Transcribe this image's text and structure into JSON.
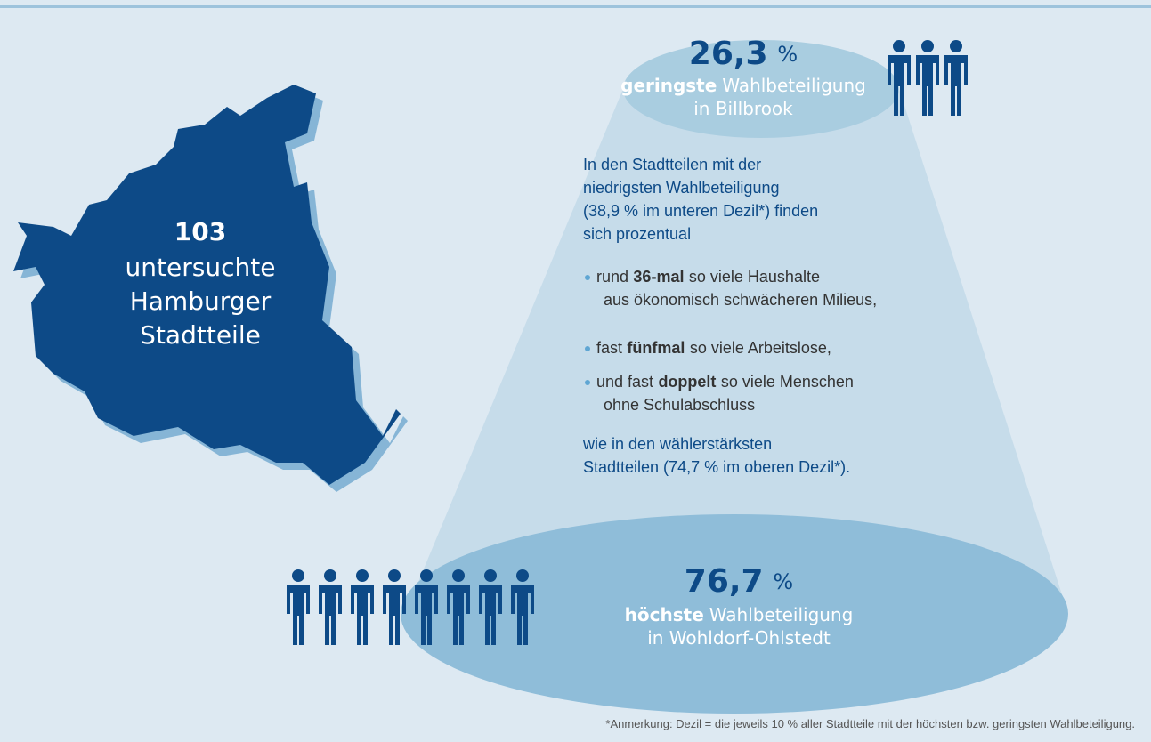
{
  "top": {
    "value": "26,3",
    "unit": "%",
    "bold": "geringste",
    "label": "Wahlbeteiligung",
    "place": "in Billbrook"
  },
  "bottom": {
    "value": "76,7",
    "unit": "%",
    "bold": "höchste",
    "label": "Wahlbeteiligung",
    "place": "in Wohldorf-Ohlstedt"
  },
  "map": {
    "count": "103",
    "lines": [
      "untersuchte",
      "Hamburger",
      "Stadtteile"
    ]
  },
  "intro": [
    "In den Stadtteilen mit der",
    "niedrigsten Wahlbeteiligung",
    "(38,9 % im unteren Dezil*) finden",
    "sich prozentual"
  ],
  "bullets": [
    {
      "before": "rund",
      "bold": "36-mal",
      "after": "so viele Haushalte",
      "line2": "aus ökonomisch schwächeren Milieus,"
    },
    {
      "before": "fast",
      "bold": "fünfmal",
      "after": "so viele Arbeitslose,",
      "line2": null
    },
    {
      "before": "und fast",
      "bold": "doppelt",
      "after": "so viele Menschen",
      "line2": "ohne Schulabschluss"
    }
  ],
  "closing": [
    "wie in den wählerstärksten",
    "Stadtteilen (74,7 % im oberen Dezil*)."
  ],
  "footnote": "*Anmerkung: Dezil = die jeweils 10 % aller Stadtteile mit der höchsten bzw. geringsten Wahlbeteiligung."
}
